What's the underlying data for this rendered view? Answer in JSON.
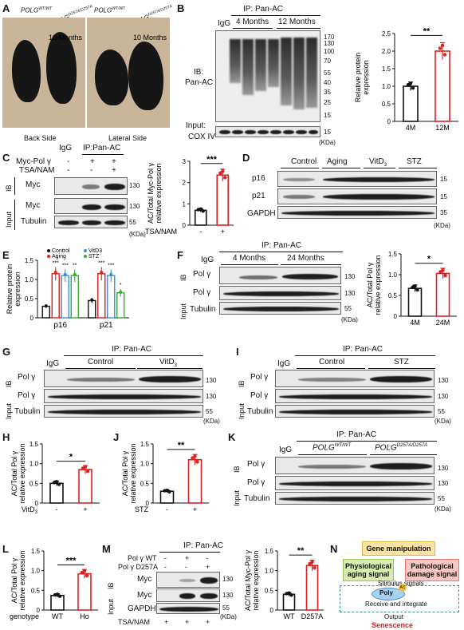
{
  "panelA": {
    "label": "A",
    "genotypes": [
      "POLG",
      "WT/WT",
      "POLG",
      "D257A/D257A",
      "POLG",
      "WT/WT",
      "POLG",
      "D257A/D257A"
    ],
    "age": "10 Months",
    "views": [
      "Back Side",
      "Lateral Side"
    ]
  },
  "panelB": {
    "label": "B",
    "ip": "IP: Pan-AC",
    "igg": "IgG",
    "groups": [
      "4 Months",
      "12 Months"
    ],
    "ib": "IB:",
    "ib2": "Pan-AC",
    "input": "Input:",
    "input2": "COX IV",
    "kda_unit": "(KDa)",
    "markers": [
      "170",
      "130",
      "100",
      "70",
      "55",
      "40",
      "35",
      "25",
      "15",
      "15"
    ],
    "chart_ylabel": [
      "Relative protein",
      "expression"
    ],
    "sig": "**"
  },
  "panelC": {
    "label": "C",
    "cols": [
      "IgG",
      "IP:Pan-AC"
    ],
    "rows": [
      "Myc-Pol γ",
      "TSA/NAM"
    ],
    "signs": [
      [
        "-",
        "+",
        "+"
      ],
      [
        "-",
        "-",
        "+"
      ]
    ],
    "ib": "IB",
    "input": "Input",
    "bands": [
      "Myc",
      "Myc",
      "Tubulin"
    ],
    "markers": [
      "130",
      "130",
      "55"
    ],
    "kda_unit": "(KDa)",
    "chart_ylabel": [
      "AC/Total Myc-Pol γ",
      "relative expression"
    ],
    "xlabel": "TSA/NAM",
    "xticks": [
      "-",
      "+"
    ],
    "sig": "***"
  },
  "panelD": {
    "label": "D",
    "groups": [
      "Control",
      "Aging",
      "VitD",
      "3",
      "STZ"
    ],
    "rows": [
      "p16",
      "p21",
      "GAPDH"
    ],
    "markers": [
      "15",
      "15",
      "35"
    ],
    "kda_unit": "(KDa)"
  },
  "panelE": {
    "label": "E",
    "ylabel": [
      "Relative protein",
      "expression"
    ],
    "legend": [
      "Control",
      "Aging",
      "VitD",
      "3",
      "STZ"
    ],
    "xticks": [
      "p16",
      "p21"
    ],
    "sigs": [
      "***",
      "***",
      "**",
      "***",
      "***",
      "*"
    ],
    "colors": {
      "control": "#111111",
      "aging": "#e02020",
      "vitd": "#3b8fd9",
      "stz": "#3aaa35"
    }
  },
  "panelF": {
    "label": "F",
    "ip": "IP: Pan-AC",
    "igg": "IgG",
    "groups": [
      "4 Months",
      "24 Months"
    ],
    "ib": "IB",
    "input": "Input",
    "rows": [
      "Pol γ",
      "Pol γ",
      "Tubulin"
    ],
    "markers": [
      "130",
      "130",
      "55"
    ],
    "kda_unit": "(KDa)",
    "chart_ylabel": [
      "AC/Total Pol γ",
      "relative expression"
    ],
    "xticks": [
      "4M",
      "24M"
    ],
    "sig": "*"
  },
  "panelG": {
    "label": "G",
    "ip": "IP: Pan-AC",
    "igg": "IgG",
    "groups": [
      "Control",
      "VitD",
      "3"
    ],
    "ib": "IB",
    "input": "Input",
    "rows": [
      "Pol γ",
      "Pol γ",
      "Tubulin"
    ],
    "markers": [
      "130",
      "130",
      "55"
    ],
    "kda_unit": "(KDa)"
  },
  "panelI": {
    "label": "I",
    "ip": "IP: Pan-AC",
    "igg": "IgG",
    "groups": [
      "Control",
      "STZ"
    ],
    "ib": "IB",
    "input": "Input",
    "rows": [
      "Pol γ",
      "Pol γ",
      "Tubulin"
    ],
    "markers": [
      "130",
      "130",
      "55"
    ],
    "kda_unit": "(KDa)"
  },
  "panelH": {
    "label": "H",
    "ylabel": [
      "AC/Total Pol γ",
      "relative expression"
    ],
    "xlabel": "VitD",
    "xlabel_sub": "3",
    "xticks": [
      "-",
      "+"
    ],
    "sig": "*"
  },
  "panelJ": {
    "label": "J",
    "ylabel": [
      "AC/Total Pol γ",
      "relative expression"
    ],
    "xlabel": "STZ",
    "xticks": [
      "-",
      "+"
    ],
    "sig": "**"
  },
  "panelK": {
    "label": "K",
    "ip": "IP: Pan-AC",
    "igg": "IgG",
    "groups": [
      "POLG",
      "WT/WT",
      "POLG",
      "D257A/D257A"
    ],
    "ib": "IB",
    "input": "Input",
    "rows": [
      "Pol γ",
      "Pol γ",
      "Tubulin"
    ],
    "markers": [
      "130",
      "130",
      "55"
    ],
    "kda_unit": "(KDa)"
  },
  "panelL": {
    "label": "L",
    "ylabel": [
      "AC/Total Pol γ",
      "relative expression"
    ],
    "xlabel": "genotype",
    "xticks": [
      "WT",
      "Ho"
    ],
    "sig": "***"
  },
  "panelM": {
    "label": "M",
    "ip": "IP: Pan-AC",
    "rows": [
      "Pol γ WT",
      "Pol γ D257A",
      "TSA/NAM"
    ],
    "signs": [
      [
        "-",
        "+",
        "-"
      ],
      [
        "-",
        "-",
        "+"
      ],
      [
        "+",
        "+",
        "+"
      ]
    ],
    "ib": "IB",
    "input": "Input",
    "bands": [
      "Myc",
      "Myc",
      "GAPDH"
    ],
    "markers": [
      "130",
      "130",
      "55"
    ],
    "kda_unit": "(KDa)",
    "chart_ylabel": [
      "AC/Total Myc-Pol γ",
      "relative expression"
    ],
    "xticks": [
      "WT",
      "D257A"
    ],
    "sig": "**"
  },
  "panelN": {
    "label": "N",
    "gene": "Gene manipulation",
    "phys": [
      "Physiological",
      "aging signal"
    ],
    "path": [
      "Pathological",
      "damage signal"
    ],
    "stimulus": "Stimulus signals",
    "poly": "Poly",
    "ac": "AC",
    "receive": "Receive and integrate",
    "output": "Output",
    "senescence": "Senescence"
  },
  "chart_data": [
    {
      "panel": "B",
      "type": "bar",
      "categories": [
        "4M",
        "12M"
      ],
      "values": [
        1.0,
        2.0
      ],
      "ylim": [
        0,
        2.5
      ],
      "yticks": [
        "0",
        "0.5",
        "1.0",
        "1.5",
        "2.0",
        "2.5"
      ],
      "colors": [
        "#111111",
        "#e02020"
      ]
    },
    {
      "panel": "C",
      "type": "bar",
      "categories": [
        "-",
        "+"
      ],
      "values": [
        0.7,
        2.35
      ],
      "ylim": [
        0,
        3
      ],
      "yticks": [
        "0",
        "1",
        "2",
        "3"
      ],
      "colors": [
        "#111111",
        "#e02020"
      ]
    },
    {
      "panel": "E",
      "type": "bar",
      "categories": [
        "p16",
        "p21"
      ],
      "ylim": [
        0,
        1.5
      ],
      "yticks": [
        "0",
        "0.5",
        "1.0",
        "1.5"
      ],
      "series": [
        {
          "name": "Control",
          "values": [
            0.3,
            0.45
          ]
        },
        {
          "name": "Aging",
          "values": [
            1.15,
            1.15
          ]
        },
        {
          "name": "VitD3",
          "values": [
            1.1,
            1.1
          ]
        },
        {
          "name": "STZ",
          "values": [
            1.1,
            0.65
          ]
        }
      ]
    },
    {
      "panel": "F",
      "type": "bar",
      "categories": [
        "4M",
        "24M"
      ],
      "values": [
        0.67,
        1.03
      ],
      "ylim": [
        0,
        1.5
      ],
      "yticks": [
        "0",
        "0.5",
        "1.0",
        "1.5"
      ],
      "colors": [
        "#111111",
        "#e02020"
      ]
    },
    {
      "panel": "H",
      "type": "bar",
      "categories": [
        "-",
        "+"
      ],
      "values": [
        0.5,
        0.85
      ],
      "ylim": [
        0,
        1.5
      ],
      "yticks": [
        "0",
        "0.5",
        "1.0",
        "1.5"
      ],
      "colors": [
        "#111111",
        "#e02020"
      ]
    },
    {
      "panel": "J",
      "type": "bar",
      "categories": [
        "-",
        "+"
      ],
      "values": [
        0.3,
        1.1
      ],
      "ylim": [
        0,
        1.5
      ],
      "yticks": [
        "0",
        "0.5",
        "1.0",
        "1.5"
      ],
      "colors": [
        "#111111",
        "#e02020"
      ]
    },
    {
      "panel": "L",
      "type": "bar",
      "categories": [
        "WT",
        "Ho"
      ],
      "values": [
        0.37,
        0.92
      ],
      "ylim": [
        0,
        1.5
      ],
      "yticks": [
        "0",
        "0.5",
        "1.0",
        "1.5"
      ],
      "colors": [
        "#111111",
        "#e02020"
      ]
    },
    {
      "panel": "M",
      "type": "bar",
      "categories": [
        "WT",
        "D257A"
      ],
      "values": [
        0.4,
        1.13
      ],
      "ylim": [
        0,
        1.5
      ],
      "yticks": [
        "0",
        "0.5",
        "1.0",
        "1.5"
      ],
      "colors": [
        "#111111",
        "#e02020"
      ]
    }
  ]
}
